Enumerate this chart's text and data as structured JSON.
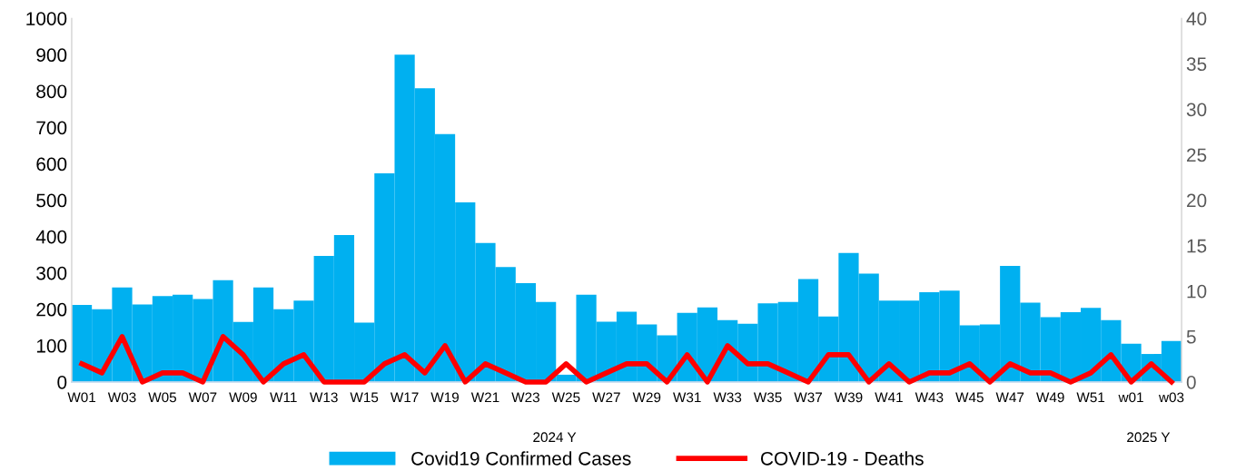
{
  "chart_data": {
    "type": "bar",
    "categories": [
      "W01",
      null,
      "W03",
      null,
      "W05",
      null,
      "W07",
      null,
      "W09",
      null,
      "W11",
      null,
      "W13",
      null,
      "W15",
      null,
      "W17",
      null,
      "W19",
      null,
      "W21",
      null,
      "W23",
      null,
      "W25",
      null,
      "W27",
      null,
      "W29",
      null,
      "W31",
      null,
      "W33",
      null,
      "W35",
      null,
      "W37",
      null,
      "W39",
      null,
      "W41",
      null,
      "W43",
      null,
      "W45",
      null,
      "W47",
      null,
      "W49",
      null,
      "W51",
      null,
      "w01",
      null,
      "w03"
    ],
    "series": [
      {
        "name": "Covid19 Confirmed Cases",
        "color": "#00b0f0",
        "values": [
          212,
          200,
          260,
          213,
          236,
          240,
          228,
          280,
          165,
          260,
          200,
          224,
          347,
          404,
          163,
          574,
          900,
          808,
          682,
          494,
          382,
          316,
          272,
          220,
          20,
          240,
          166,
          193,
          158,
          128,
          190,
          205,
          170,
          160,
          216,
          220,
          283,
          180,
          355,
          298,
          224,
          224,
          247,
          251,
          156,
          158,
          319,
          218,
          178,
          192,
          204,
          170,
          105,
          77,
          113
        ]
      },
      {
        "name": "COVID-19 - Deaths",
        "type": "line",
        "axis": "y2",
        "color": "#ff0000",
        "values": [
          2,
          1,
          5,
          0,
          1,
          1,
          0,
          5,
          3,
          0,
          2,
          3,
          0,
          0,
          0,
          2,
          3,
          1,
          4,
          0,
          2,
          1,
          0,
          0,
          2,
          0,
          1,
          2,
          2,
          0,
          3,
          0,
          4,
          2,
          2,
          1,
          0,
          3,
          3,
          0,
          2,
          0,
          1,
          1,
          2,
          0,
          2,
          1,
          1,
          0,
          1,
          3,
          0,
          2,
          0
        ]
      }
    ],
    "ylim": [
      0,
      1000
    ],
    "yticks": [
      0,
      100,
      200,
      300,
      400,
      500,
      600,
      700,
      800,
      900,
      1000
    ],
    "y2lim": [
      0,
      40
    ],
    "y2ticks": [
      0,
      5,
      10,
      15,
      20,
      25,
      30,
      35,
      40
    ],
    "annotations": [
      "2024 Y",
      "2025 Y"
    ],
    "legend": "bottom",
    "grid": false,
    "line_style": "solid",
    "marker": "none"
  }
}
